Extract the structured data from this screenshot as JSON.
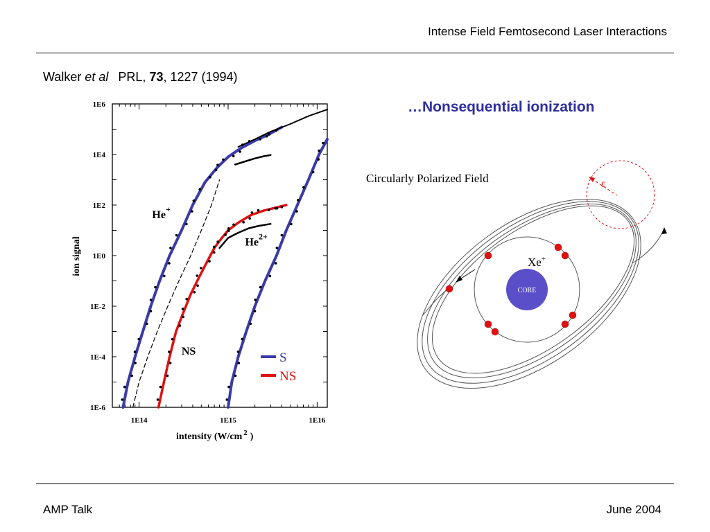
{
  "header": {
    "title": "Intense Field Femtosecond Laser Interactions"
  },
  "citation": {
    "author": "Walker",
    "etal": "et al",
    "journal": "PRL,",
    "volume": "73",
    "rest": ", 1227 (1994)"
  },
  "headline": "…Nonsequential ionization",
  "footer": {
    "left": "AMP Talk",
    "right": "June 2004"
  },
  "chart_data": {
    "type": "line",
    "xlabel": "intensity (W/cm",
    "xlabel_sup": "2",
    "xlabel_close": ")",
    "ylabel": "ion signal",
    "x_scale": "log",
    "y_scale": "log",
    "xlim": [
      50000000000000.0,
      1.3e+16
    ],
    "ylim": [
      1e-06,
      1000000.0
    ],
    "x_ticks": [
      {
        "value": 100000000000000.0,
        "label": "1E14"
      },
      {
        "value": 1000000000000000.0,
        "label": "1E15"
      },
      {
        "value": 1e+16,
        "label": "1E16"
      }
    ],
    "y_ticks": [
      {
        "value": 1000000.0,
        "label": "1E6"
      },
      {
        "value": 10000.0,
        "label": "1E4"
      },
      {
        "value": 100.0,
        "label": "1E2"
      },
      {
        "value": 1,
        "label": "1E0"
      },
      {
        "value": 0.01,
        "label": "1E-2"
      },
      {
        "value": 0.0001,
        "label": "1E-4"
      },
      {
        "value": 1e-06,
        "label": "1E-6"
      }
    ],
    "annotations": [
      {
        "text": "He",
        "sup": "+",
        "x": 140000000000000.0,
        "y": 30
      },
      {
        "text": "He",
        "sup": "2+",
        "x": 1550000000000000.0,
        "y": 2.5
      },
      {
        "text": "NS",
        "x": 300000000000000.0,
        "y": 0.00012
      }
    ],
    "legend": {
      "position": "bottom-right",
      "entries": [
        {
          "label": "S",
          "color": "#3a3aa8"
        },
        {
          "label": "NS",
          "color": "#e01010"
        }
      ]
    },
    "series": [
      {
        "name": "S",
        "color": "#3a3aa8",
        "x": [
          66000000000000.0,
          75000000000000.0,
          90000000000000.0,
          110000000000000.0,
          135000000000000.0,
          170000000000000.0,
          220000000000000.0,
          300000000000000.0,
          400000000000000.0,
          550000000000000.0,
          750000000000000.0,
          1000000000000000.0,
          1400000000000000.0,
          2000000000000000.0,
          2800000000000000.0,
          4000000000000000.0
        ],
        "y": [
          1e-06,
          1e-05,
          0.0001,
          0.001,
          0.01,
          0.1,
          1,
          10,
          100,
          800,
          3000,
          8000,
          18000,
          35000,
          60000,
          120000
        ]
      },
      {
        "name": "S He2+",
        "color": "#3a3aa8",
        "x": [
          1000000000000000.0,
          1100000000000000.0,
          1300000000000000.0,
          1600000000000000.0,
          2000000000000000.0,
          2600000000000000.0,
          3500000000000000.0,
          4500000000000000.0,
          6000000000000000.0,
          8000000000000000.0,
          1.05e+16,
          1.3e+16
        ],
        "y": [
          1e-06,
          1e-05,
          0.0001,
          0.001,
          0.01,
          0.1,
          1,
          10,
          100,
          1000,
          10000,
          40000
        ]
      },
      {
        "name": "NS",
        "color": "#e01010",
        "x": [
          165000000000000.0,
          190000000000000.0,
          220000000000000.0,
          260000000000000.0,
          310000000000000.0,
          380000000000000.0,
          450000000000000.0,
          550000000000000.0,
          700000000000000.0,
          850000000000000.0,
          1000000000000000.0,
          1300000000000000.0,
          1800000000000000.0,
          2500000000000000.0,
          3500000000000000.0,
          4500000000000000.0
        ],
        "y": [
          1e-06,
          1e-05,
          0.0001,
          0.001,
          0.005,
          0.03,
          0.1,
          0.4,
          2,
          5,
          10,
          20,
          40,
          60,
          80,
          100
        ]
      },
      {
        "name": "theory He+",
        "color": "#000000",
        "x": [
          1300000000000000.0,
          2000000000000000.0,
          3000000000000000.0,
          5000000000000000.0,
          8000000000000000.0,
          1.3e+16
        ],
        "y": [
          20000,
          40000,
          80000,
          160000,
          330000,
          600000
        ]
      },
      {
        "name": "dashed",
        "color": "#000000",
        "x": [
          85000000000000.0,
          100000000000000.0,
          125000000000000.0,
          160000000000000.0,
          210000000000000.0,
          280000000000000.0,
          380000000000000.0,
          500000000000000.0,
          650000000000000.0,
          800000000000000.0
        ],
        "y": [
          1e-06,
          1e-05,
          0.0001,
          0.001,
          0.01,
          0.1,
          1,
          10,
          100,
          1000
        ]
      },
      {
        "name": "plateau He+",
        "color": "#000000",
        "x": [
          1200000000000000.0,
          1600000000000000.0,
          2000000000000000.0,
          2500000000000000.0,
          3000000000000000.0
        ],
        "y": [
          4000,
          5500,
          7000,
          8500,
          9500
        ]
      },
      {
        "name": "plateau NS",
        "color": "#000000",
        "x": [
          800000000000000.0,
          1000000000000000.0,
          1300000000000000.0,
          1700000000000000.0,
          2200000000000000.0,
          3000000000000000.0
        ],
        "y": [
          2,
          5,
          8,
          12,
          15,
          18
        ]
      }
    ]
  },
  "diagram": {
    "title": "Circularly Polarized Field",
    "field_symbol": "ε",
    "ion_label": "Xe",
    "ion_sup": "+",
    "core_label": "CORE",
    "colors": {
      "core": "#5b4fc9",
      "electron": "#e01010",
      "dashed": "#e01010"
    }
  }
}
